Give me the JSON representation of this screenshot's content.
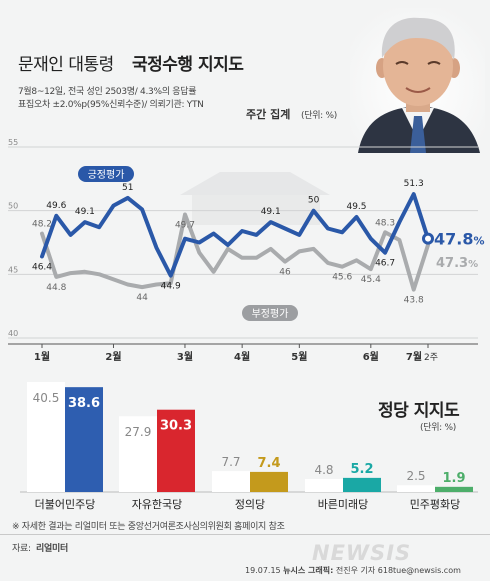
{
  "header": {
    "title_prefix": "문재인 대통령",
    "title_main": "국정수행 지지도",
    "survey_line1": "7월8~12일, 전국 성인 2503명/ 4.3%의 응답률",
    "survey_line2": "표집오차 ±2.0%p(95%신뢰수준)/ 의뢰기관: YTN",
    "weekly_label": "주간 집계",
    "weekly_unit": "(단위: %)"
  },
  "chart_data": [
    {
      "type": "line",
      "y_ticks": [
        40,
        45,
        50,
        55
      ],
      "ylim": [
        40,
        55
      ],
      "x_month_labels": [
        "1월",
        "2월",
        "3월",
        "4월",
        "5월",
        "6월",
        "7월"
      ],
      "x_last_label": "2주",
      "series": [
        {
          "name": "긍정평가",
          "color": "#2a58a8",
          "values": [
            46.4,
            49.6,
            48.1,
            49.1,
            48.7,
            50.4,
            51,
            50.1,
            47.1,
            44.9,
            47.8,
            47.5,
            48.2,
            47.3,
            48.4,
            48.1,
            49.1,
            48.6,
            48.1,
            50,
            48.6,
            48.3,
            49.5,
            47.8,
            46.7,
            49.1,
            51.3,
            47.8
          ],
          "labels": {
            "0": "46.4",
            "1": "49.6",
            "3": "49.1",
            "6": "51",
            "9": "44.9",
            "16": "49.1",
            "19": "50",
            "22": "49.5",
            "24": "46.7",
            "26": "51.3"
          },
          "end_label": "47.8",
          "end_unit": "%"
        },
        {
          "name": "부정평가",
          "color": "#a9abad",
          "values": [
            48.2,
            44.8,
            45.1,
            45.2,
            45,
            44.6,
            44.2,
            44,
            44.2,
            44.3,
            49.7,
            46.7,
            45.2,
            47,
            46.3,
            46.3,
            47,
            46,
            46.8,
            47,
            45.9,
            45.6,
            46.1,
            45.4,
            48.3,
            47.7,
            43.8,
            47.3
          ],
          "labels": {
            "0": "48.2",
            "1": "44.8",
            "7": "44",
            "10": "49.7",
            "17": "46",
            "21": "45.6",
            "23": "45.4",
            "24": "48.3",
            "26": "43.8"
          },
          "end_label": "47.3",
          "end_unit": "%"
        }
      ]
    },
    {
      "type": "bar",
      "title": "정당 지지도",
      "unit": "(단위: %)",
      "categories": [
        "더불어민주당",
        "자유한국당",
        "정의당",
        "바른미래당",
        "민주평화당"
      ],
      "series": [
        {
          "name": "previous",
          "values": [
            40.5,
            27.9,
            7.7,
            4.8,
            2.5
          ]
        },
        {
          "name": "current",
          "values": [
            38.6,
            30.3,
            7.4,
            5.2,
            1.9
          ]
        }
      ],
      "colors": [
        "#2e5eb0",
        "#d9262e",
        "#c49a1c",
        "#1aa8a5",
        "#4dae6a"
      ]
    }
  ],
  "footer": {
    "note": "※ 자세한 결과는 리얼미터 또는 중앙선거여론조사심의위원회 홈페이지 참조",
    "source_label": "자료:",
    "source_name": "리얼미터",
    "credit_date": "19.07.15",
    "credit_agency": "뉴시스 그래픽:",
    "credit_name": "전진우 기자 618tue@newsis.com",
    "watermark": "NEWSIS"
  }
}
